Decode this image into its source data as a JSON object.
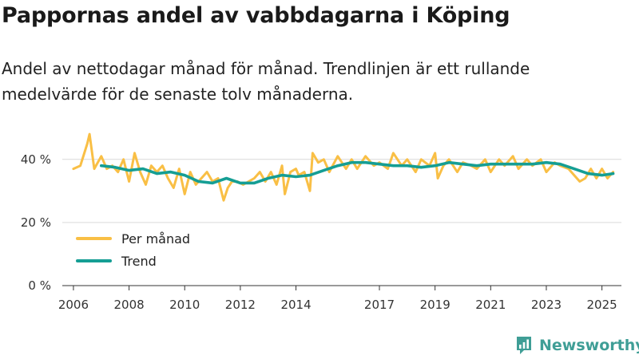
{
  "header": {
    "title": "Pappornas andel av vabbdagarna i Köping",
    "subtitle": "Andel av nettodagar månad för månad. Trendlinjen är ett rullande medelvärde för de senaste tolv månaderna."
  },
  "brand": {
    "name": "Newsworthy",
    "icon": "newsworthy-chart-icon"
  },
  "colors": {
    "monthly": "#f9bf45",
    "trend": "#159e94",
    "grid": "#d9d9d9",
    "axis": "#333333"
  },
  "chart_data": {
    "type": "line",
    "title": "Pappornas andel av vabbdagarna i Köping",
    "xlabel": "",
    "ylabel": "",
    "xlim": [
      2005.6,
      2025.7
    ],
    "ylim": [
      0,
      45
    ],
    "y_ticks": [
      0,
      20,
      40
    ],
    "y_tick_labels": [
      "0 %",
      "20 %",
      "40 %"
    ],
    "x_ticks": [
      2006,
      2008,
      2010,
      2012,
      2014,
      2017,
      2019,
      2021,
      2023,
      2025
    ],
    "x_tick_labels": [
      "2006",
      "2008",
      "2010",
      "2012",
      "2014",
      "2017",
      "2019",
      "2021",
      "2023",
      "2025"
    ],
    "grid": true,
    "legend": {
      "position": "bottom-left",
      "monthly_label": "Per månad",
      "trend_label": "Trend"
    },
    "series": [
      {
        "name": "Per månad",
        "x": [
          2006.0,
          2006.25,
          2006.5,
          2006.58,
          2006.75,
          2007.0,
          2007.2,
          2007.4,
          2007.6,
          2007.8,
          2008.0,
          2008.2,
          2008.4,
          2008.6,
          2008.8,
          2009.0,
          2009.2,
          2009.4,
          2009.6,
          2009.8,
          2010.0,
          2010.2,
          2010.4,
          2010.6,
          2010.8,
          2011.0,
          2011.2,
          2011.4,
          2011.55,
          2011.7,
          2011.9,
          2012.1,
          2012.3,
          2012.5,
          2012.7,
          2012.9,
          2013.1,
          2013.3,
          2013.5,
          2013.6,
          2013.8,
          2014.0,
          2014.1,
          2014.3,
          2014.5,
          2014.6,
          2014.8,
          2015.0,
          2015.2,
          2015.5,
          2015.8,
          2016.0,
          2016.2,
          2016.5,
          2016.8,
          2017.0,
          2017.3,
          2017.5,
          2017.8,
          2018.0,
          2018.3,
          2018.5,
          2018.8,
          2019.0,
          2019.1,
          2019.3,
          2019.5,
          2019.8,
          2020.0,
          2020.3,
          2020.5,
          2020.8,
          2021.0,
          2021.3,
          2021.5,
          2021.8,
          2022.0,
          2022.3,
          2022.5,
          2022.8,
          2023.0,
          2023.3,
          2023.5,
          2023.8,
          2024.0,
          2024.2,
          2024.4,
          2024.6,
          2024.8,
          2025.0,
          2025.2,
          2025.4
        ],
        "values": [
          37,
          38,
          45,
          48,
          37,
          41,
          37,
          38,
          36,
          40,
          33,
          42,
          36,
          32,
          38,
          36,
          38,
          34,
          31,
          37,
          29,
          36,
          32,
          34,
          36,
          33,
          34,
          27,
          31,
          33,
          33,
          32,
          33,
          34,
          36,
          33,
          36,
          32,
          38,
          29,
          36,
          37,
          35,
          36,
          30,
          42,
          39,
          40,
          36,
          41,
          37,
          40,
          37,
          41,
          38,
          39,
          37,
          42,
          38,
          40,
          36,
          40,
          38,
          42,
          34,
          38,
          40,
          36,
          39,
          38,
          37,
          40,
          36,
          40,
          38,
          41,
          37,
          40,
          38,
          40,
          36,
          39,
          38,
          37,
          35,
          33,
          34,
          37,
          34,
          37,
          34,
          36
        ]
      },
      {
        "name": "Trend",
        "x": [
          2007.0,
          2007.5,
          2008.0,
          2008.5,
          2009.0,
          2009.5,
          2010.0,
          2010.5,
          2011.0,
          2011.5,
          2012.0,
          2012.5,
          2013.0,
          2013.5,
          2014.0,
          2014.5,
          2015.0,
          2015.5,
          2016.0,
          2016.5,
          2017.0,
          2017.5,
          2018.0,
          2018.5,
          2019.0,
          2019.5,
          2020.0,
          2020.5,
          2021.0,
          2021.5,
          2022.0,
          2022.5,
          2023.0,
          2023.5,
          2024.0,
          2024.5,
          2025.0,
          2025.4
        ],
        "values": [
          38,
          37.5,
          36.5,
          37,
          35.5,
          36,
          35,
          33,
          32.5,
          34,
          32.5,
          32.5,
          34,
          35,
          34.5,
          35,
          36.5,
          38,
          39,
          39,
          38.5,
          38,
          38,
          37.5,
          38,
          39,
          38.5,
          38,
          38.5,
          38.5,
          38.5,
          38.5,
          39,
          38.5,
          37,
          35.5,
          35,
          35.5
        ]
      }
    ]
  }
}
